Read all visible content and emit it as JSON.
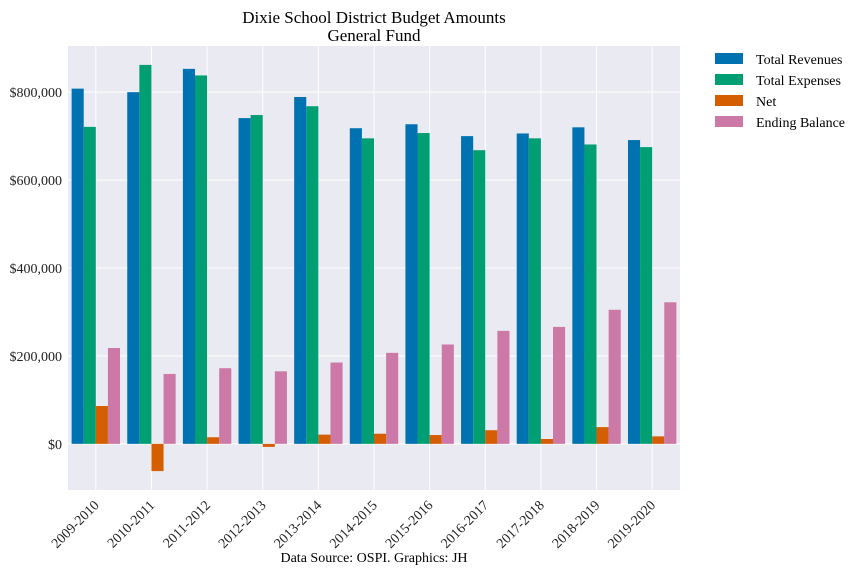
{
  "chart_data": {
    "type": "bar",
    "title": "Dixie School District Budget Amounts",
    "subtitle": "General Fund",
    "xlabel": "",
    "ylabel": "",
    "caption": "Data Source: OSPI. Graphics: JH",
    "categories": [
      "2009-2010",
      "2010-2011",
      "2011-2012",
      "2012-2013",
      "2013-2014",
      "2014-2015",
      "2015-2016",
      "2016-2017",
      "2017-2018",
      "2018-2019",
      "2019-2020"
    ],
    "ylim": [
      -105000,
      905000
    ],
    "yticks": [
      0,
      200000,
      400000,
      600000,
      800000
    ],
    "ytick_labels": [
      "$0",
      "$200,000",
      "$400,000",
      "$600,000",
      "$800,000"
    ],
    "grid": true,
    "legend_position": "outside-top-right",
    "series": [
      {
        "name": "Total Revenues",
        "color": "#0072b2",
        "values": [
          808000,
          800000,
          853000,
          741000,
          789000,
          718000,
          727000,
          700000,
          706000,
          720000,
          691000
        ]
      },
      {
        "name": "Total Expenses",
        "color": "#009e73",
        "values": [
          721000,
          862000,
          838000,
          748000,
          768000,
          695000,
          707000,
          668000,
          695000,
          681000,
          675000
        ]
      },
      {
        "name": "Net",
        "color": "#d55e00",
        "values": [
          86000,
          -62000,
          15000,
          -7000,
          21000,
          23000,
          20000,
          31000,
          11000,
          38000,
          17000
        ]
      },
      {
        "name": "Ending Balance",
        "color": "#cc79a7",
        "values": [
          218000,
          159000,
          172000,
          165000,
          185000,
          207000,
          226000,
          257000,
          266000,
          305000,
          322000
        ]
      }
    ]
  }
}
